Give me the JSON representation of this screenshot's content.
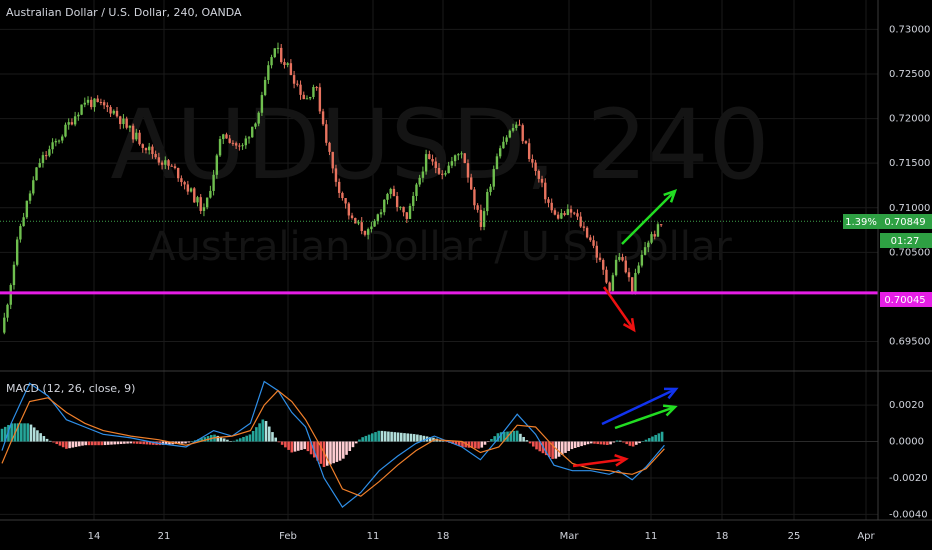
{
  "header": {
    "symbol_title": "Australian Dollar / U.S. Dollar, 240, OANDA",
    "watermark_symbol": "AUDUSD, 240",
    "watermark_name": "Australian Dollar / U.S. Dollar"
  },
  "price_badges": {
    "change_pct": "1.39%",
    "last_price": "0.70849",
    "countdown": "01:27",
    "hline_price": "0.70045"
  },
  "indicator": {
    "label": "MACD (12, 26, close, 9)"
  },
  "colors": {
    "background": "#000000",
    "up_candle": "#6fbf4f",
    "down_candle": "#e8735f",
    "hline": "#e61ee6",
    "macd_line": "#2f8fe8",
    "signal_line": "#f07f2a",
    "hist_pos": "#26a69a",
    "hist_pos_light": "#b2dfdb",
    "hist_neg": "#ef5350",
    "hist_neg_light": "#ffcdd2",
    "green_arrow": "#22dd22",
    "red_arrow": "#ee1111",
    "blue_arrow": "#1133ee"
  },
  "chart_data": [
    {
      "type": "candlestick",
      "y_ticks": [
        "0.73000",
        "0.72500",
        "0.72000",
        "0.71500",
        "0.71000",
        "0.70500",
        "0.69500"
      ],
      "ylim": [
        0.6945,
        0.7315
      ],
      "x_ticks": [
        "14",
        "21",
        "Feb",
        "11",
        "18",
        "Mar",
        "11",
        "18",
        "25",
        "Apr"
      ],
      "close_path": [
        {
          "x": 0,
          "y": 0.696
        },
        {
          "x": 2,
          "y": 0.708
        },
        {
          "x": 4,
          "y": 0.715
        },
        {
          "x": 6,
          "y": 0.7175
        },
        {
          "x": 9,
          "y": 0.722
        },
        {
          "x": 12,
          "y": 0.721
        },
        {
          "x": 14,
          "y": 0.7185
        },
        {
          "x": 17,
          "y": 0.7155
        },
        {
          "x": 19,
          "y": 0.714
        },
        {
          "x": 22,
          "y": 0.7095
        },
        {
          "x": 24,
          "y": 0.7185
        },
        {
          "x": 26,
          "y": 0.7165
        },
        {
          "x": 28,
          "y": 0.721
        },
        {
          "x": 29.5,
          "y": 0.728
        },
        {
          "x": 31,
          "y": 0.726
        },
        {
          "x": 33,
          "y": 0.722
        },
        {
          "x": 34,
          "y": 0.724
        },
        {
          "x": 36,
          "y": 0.714
        },
        {
          "x": 38,
          "y": 0.7085
        },
        {
          "x": 40,
          "y": 0.707
        },
        {
          "x": 42,
          "y": 0.712
        },
        {
          "x": 44,
          "y": 0.7085
        },
        {
          "x": 46,
          "y": 0.7155
        },
        {
          "x": 48,
          "y": 0.714
        },
        {
          "x": 50,
          "y": 0.7165
        },
        {
          "x": 52,
          "y": 0.708
        },
        {
          "x": 54,
          "y": 0.717
        },
        {
          "x": 56,
          "y": 0.7195
        },
        {
          "x": 58,
          "y": 0.714
        },
        {
          "x": 60,
          "y": 0.709
        },
        {
          "x": 62,
          "y": 0.7095
        },
        {
          "x": 64,
          "y": 0.7065
        },
        {
          "x": 66,
          "y": 0.701
        },
        {
          "x": 67,
          "y": 0.705
        },
        {
          "x": 68.5,
          "y": 0.701
        },
        {
          "x": 70,
          "y": 0.706
        },
        {
          "x": 72,
          "y": 0.7085
        }
      ],
      "horizontal_line": 0.70045,
      "last_price_line": 0.70849
    },
    {
      "type": "line",
      "title": "MACD (12, 26, close, 9)",
      "y_ticks": [
        "0.0020",
        "0.0000",
        "-0.0020",
        "-0.0040"
      ],
      "ylim": [
        -0.0042,
        0.0036
      ],
      "x": [
        0,
        1,
        3,
        5,
        7,
        9,
        11,
        14,
        17,
        20,
        23,
        25,
        27,
        28.5,
        30,
        31.5,
        33,
        35,
        37,
        39,
        41,
        43,
        45,
        47,
        50,
        52,
        54,
        56,
        58,
        60,
        62,
        64,
        66,
        67,
        68.5,
        70,
        72
      ],
      "series": [
        {
          "values": [
            -0.0005,
            0.001,
            0.0032,
            0.0025,
            0.0012,
            0.0008,
            0.0004,
            0.0002,
            -0.0001,
            -0.0003,
            0.0006,
            0.0003,
            0.001,
            0.0033,
            0.0028,
            0.0016,
            0.0008,
            -0.002,
            -0.0036,
            -0.0028,
            -0.0016,
            -0.0008,
            -0.0001,
            0.0003,
            -0.0003,
            -0.001,
            0.0002,
            0.0015,
            0.0004,
            -0.0013,
            -0.0016,
            -0.0016,
            -0.0018,
            -0.0016,
            -0.0021,
            -0.0014,
            -0.0002
          ]
        },
        {
          "values": [
            -0.0012,
            0.0,
            0.0022,
            0.0024,
            0.0016,
            0.001,
            0.0006,
            0.0003,
            0.0001,
            -0.0002,
            0.0002,
            0.0003,
            0.0006,
            0.002,
            0.0028,
            0.0022,
            0.0012,
            -0.0006,
            -0.0026,
            -0.003,
            -0.0022,
            -0.0013,
            -0.0005,
            0.0001,
            0.0,
            -0.0006,
            -0.0003,
            0.0009,
            0.0008,
            -0.0003,
            -0.0012,
            -0.0015,
            -0.0016,
            -0.0017,
            -0.0018,
            -0.0015,
            -0.0004
          ]
        }
      ],
      "histogram": [
        0.0007,
        0.001,
        0.001,
        0.0001,
        -0.0004,
        -0.0002,
        -0.0002,
        -0.0001,
        -0.0002,
        -0.0001,
        0.0004,
        0.0,
        0.0004,
        0.0013,
        0.0,
        -0.0006,
        -0.0004,
        -0.0014,
        -0.001,
        0.0002,
        0.0006,
        0.0005,
        0.0004,
        0.0002,
        -0.0003,
        -0.0004,
        0.0005,
        0.0006,
        -0.0004,
        -0.001,
        -0.0004,
        -0.0001,
        -0.0002,
        0.0001,
        -0.0003,
        0.0001,
        0.0006
      ]
    }
  ]
}
